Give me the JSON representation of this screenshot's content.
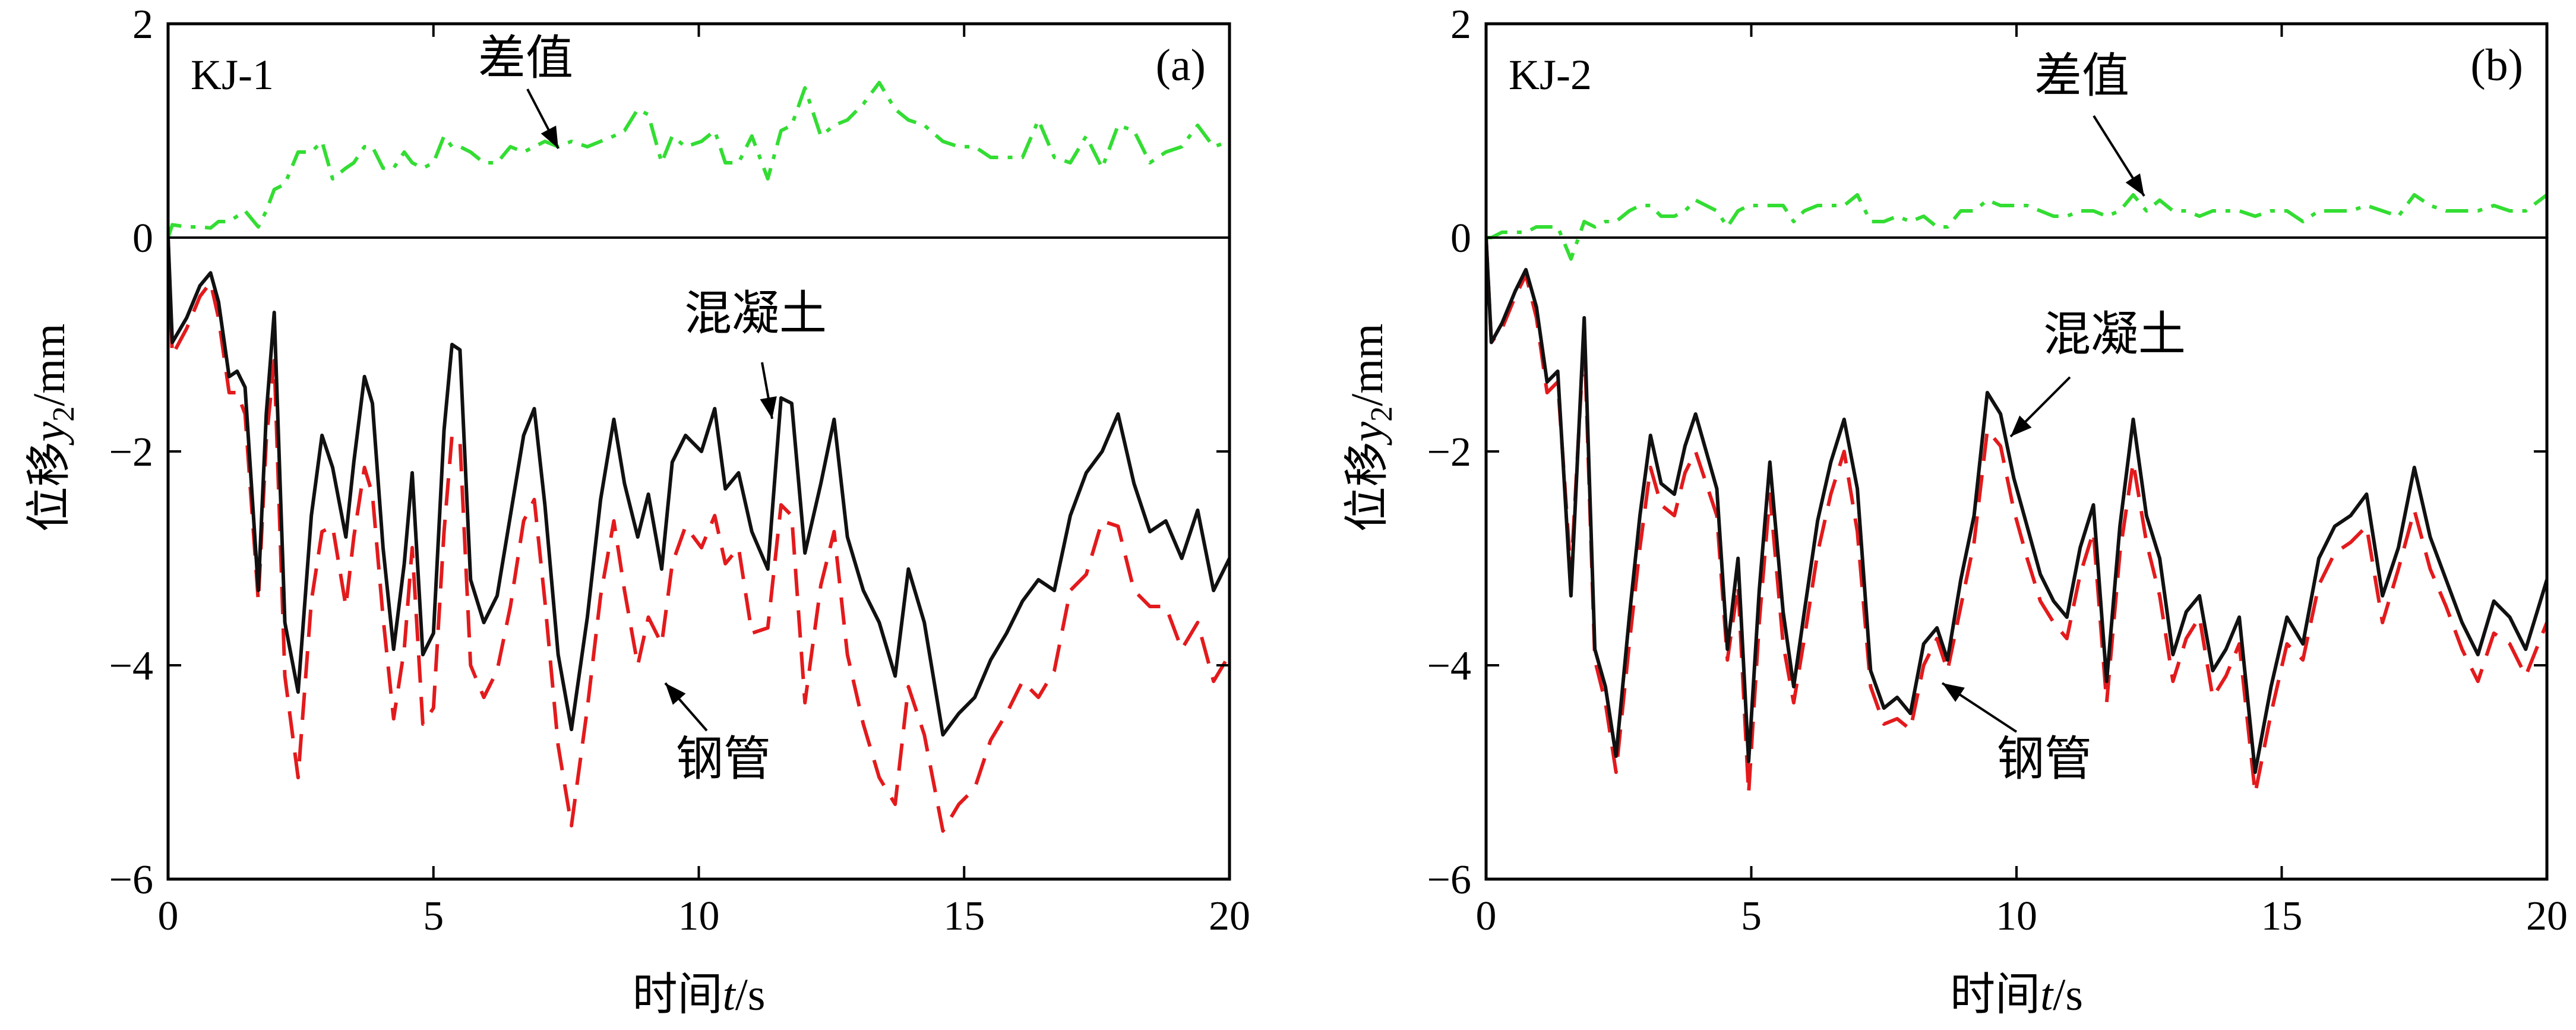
{
  "chart_data": [
    {
      "type": "line",
      "panel_label": "(a)",
      "specimen": "KJ-1",
      "xlabel_prefix": "时间",
      "xlabel_var": "t",
      "xlabel_unit": "/s",
      "ylabel_prefix": "位移",
      "ylabel_var": "y",
      "ylabel_sub": "2",
      "ylabel_unit": "/mm",
      "xlim": [
        0,
        20
      ],
      "ylim": [
        -6,
        2
      ],
      "xticks": [
        "0",
        "5",
        "10",
        "15",
        "20"
      ],
      "yticks": [
        "2",
        "0",
        "−2",
        "−4",
        "−6"
      ],
      "grid": false,
      "annotations": [
        {
          "text": "差值",
          "series": "diff"
        },
        {
          "text": "混凝土",
          "series": "concrete"
        },
        {
          "text": "钢管",
          "series": "steel"
        }
      ],
      "x": [
        0,
        0.08,
        0.35,
        0.6,
        0.8,
        0.95,
        1.15,
        1.3,
        1.45,
        1.7,
        1.85,
        2.0,
        2.2,
        2.45,
        2.7,
        2.9,
        3.1,
        3.35,
        3.5,
        3.7,
        3.85,
        4.05,
        4.25,
        4.45,
        4.6,
        4.8,
        5.0,
        5.2,
        5.35,
        5.5,
        5.7,
        5.95,
        6.2,
        6.45,
        6.7,
        6.9,
        7.1,
        7.35,
        7.6,
        7.9,
        8.15,
        8.4,
        8.6,
        8.85,
        9.05,
        9.3,
        9.5,
        9.75,
        10.05,
        10.3,
        10.5,
        10.75,
        11.0,
        11.3,
        11.55,
        11.75,
        12.0,
        12.3,
        12.55,
        12.8,
        13.1,
        13.4,
        13.7,
        13.95,
        14.25,
        14.6,
        14.9,
        15.2,
        15.5,
        15.8,
        16.1,
        16.4,
        16.7,
        17.0,
        17.3,
        17.6,
        17.9,
        18.2,
        18.5,
        18.8,
        19.1,
        19.4,
        19.7,
        20.0
      ],
      "series": [
        {
          "id": "concrete",
          "color": "#111111",
          "dash": "solid",
          "values": [
            0,
            -0.98,
            -0.75,
            -0.45,
            -0.33,
            -0.6,
            -1.3,
            -1.25,
            -1.4,
            -3.3,
            -1.65,
            -0.7,
            -3.6,
            -4.25,
            -2.6,
            -1.85,
            -2.15,
            -2.8,
            -2.1,
            -1.3,
            -1.55,
            -2.9,
            -3.85,
            -3.05,
            -2.2,
            -3.9,
            -3.7,
            -1.8,
            -1.0,
            -1.05,
            -3.2,
            -3.6,
            -3.35,
            -2.6,
            -1.85,
            -1.6,
            -2.5,
            -3.9,
            -4.6,
            -3.55,
            -2.45,
            -1.7,
            -2.3,
            -2.8,
            -2.4,
            -3.1,
            -2.1,
            -1.85,
            -2.0,
            -1.6,
            -2.35,
            -2.2,
            -2.75,
            -3.1,
            -1.5,
            -1.55,
            -2.95,
            -2.3,
            -1.7,
            -2.8,
            -3.3,
            -3.6,
            -4.1,
            -3.1,
            -3.6,
            -4.65,
            -4.45,
            -4.3,
            -3.95,
            -3.7,
            -3.4,
            -3.2,
            -3.3,
            -2.6,
            -2.2,
            -2.0,
            -1.65,
            -2.3,
            -2.75,
            -2.65,
            -3.0,
            -2.55,
            -3.3,
            -3.0
          ]
        },
        {
          "id": "steel",
          "color": "#e31a1c",
          "dash": "dashed",
          "values": [
            0,
            -1.1,
            -0.85,
            -0.55,
            -0.42,
            -0.75,
            -1.45,
            -1.45,
            -1.65,
            -3.4,
            -1.9,
            -1.15,
            -4.1,
            -5.05,
            -3.4,
            -2.75,
            -2.7,
            -3.45,
            -2.8,
            -2.15,
            -2.4,
            -3.55,
            -4.5,
            -3.85,
            -2.9,
            -4.55,
            -4.4,
            -2.75,
            -1.85,
            -1.9,
            -4.0,
            -4.3,
            -4.05,
            -3.45,
            -2.65,
            -2.45,
            -3.4,
            -4.75,
            -5.5,
            -4.4,
            -3.35,
            -2.65,
            -3.3,
            -4.0,
            -3.55,
            -3.8,
            -3.05,
            -2.7,
            -2.9,
            -2.6,
            -3.05,
            -2.9,
            -3.7,
            -3.65,
            -2.5,
            -2.6,
            -4.35,
            -3.25,
            -2.75,
            -3.9,
            -4.55,
            -5.05,
            -5.3,
            -4.2,
            -4.65,
            -5.55,
            -5.3,
            -5.15,
            -4.7,
            -4.45,
            -4.15,
            -4.3,
            -4.05,
            -3.3,
            -3.15,
            -2.65,
            -2.7,
            -3.3,
            -3.45,
            -3.45,
            -3.85,
            -3.6,
            -4.15,
            -3.9
          ]
        },
        {
          "id": "diff",
          "color": "#33dd33",
          "dash": "dashdot",
          "values": [
            0,
            0.12,
            0.1,
            0.1,
            0.09,
            0.15,
            0.15,
            0.2,
            0.25,
            0.1,
            0.25,
            0.45,
            0.5,
            0.8,
            0.8,
            0.9,
            0.55,
            0.65,
            0.7,
            0.85,
            0.85,
            0.65,
            0.65,
            0.8,
            0.7,
            0.65,
            0.7,
            0.95,
            0.85,
            0.85,
            0.8,
            0.7,
            0.7,
            0.85,
            0.8,
            0.85,
            0.9,
            0.85,
            0.9,
            0.85,
            0.9,
            0.95,
            1.0,
            1.2,
            1.15,
            0.7,
            0.95,
            0.85,
            0.9,
            1.0,
            0.7,
            0.7,
            0.95,
            0.55,
            1.0,
            1.05,
            1.4,
            0.95,
            1.05,
            1.1,
            1.25,
            1.45,
            1.2,
            1.1,
            1.05,
            0.9,
            0.85,
            0.85,
            0.75,
            0.75,
            0.75,
            1.1,
            0.75,
            0.7,
            0.95,
            0.65,
            1.05,
            1.0,
            0.7,
            0.8,
            0.85,
            1.05,
            0.85,
            0.9
          ]
        }
      ]
    },
    {
      "type": "line",
      "panel_label": "(b)",
      "specimen": "KJ-2",
      "xlabel_prefix": "时间",
      "xlabel_var": "t",
      "xlabel_unit": "/s",
      "ylabel_prefix": "位移",
      "ylabel_var": "y",
      "ylabel_sub": "2",
      "ylabel_unit": "/mm",
      "xlim": [
        0,
        20
      ],
      "ylim": [
        -6,
        2
      ],
      "xticks": [
        "0",
        "5",
        "10",
        "15",
        "20"
      ],
      "yticks": [
        "2",
        "0",
        "−2",
        "−4",
        "−6"
      ],
      "grid": false,
      "annotations": [
        {
          "text": "差值",
          "series": "diff"
        },
        {
          "text": "混凝土",
          "series": "concrete"
        },
        {
          "text": "钢管",
          "series": "steel"
        }
      ],
      "x": [
        0,
        0.1,
        0.3,
        0.55,
        0.75,
        0.95,
        1.15,
        1.35,
        1.6,
        1.85,
        2.05,
        2.25,
        2.45,
        2.7,
        2.9,
        3.1,
        3.3,
        3.55,
        3.75,
        3.95,
        4.15,
        4.35,
        4.55,
        4.75,
        4.95,
        5.15,
        5.35,
        5.6,
        5.8,
        6.0,
        6.25,
        6.5,
        6.75,
        7.0,
        7.25,
        7.5,
        7.75,
        8.0,
        8.25,
        8.5,
        8.7,
        8.95,
        9.2,
        9.45,
        9.7,
        9.95,
        10.2,
        10.45,
        10.7,
        10.95,
        11.2,
        11.45,
        11.7,
        11.95,
        12.2,
        12.45,
        12.7,
        12.95,
        13.2,
        13.45,
        13.7,
        13.95,
        14.2,
        14.5,
        14.8,
        15.1,
        15.4,
        15.7,
        16.0,
        16.3,
        16.6,
        16.9,
        17.2,
        17.5,
        17.8,
        18.1,
        18.4,
        18.7,
        19.0,
        19.3,
        19.6,
        20.0
      ],
      "series": [
        {
          "id": "concrete",
          "color": "#111111",
          "dash": "solid",
          "values": [
            0,
            -0.98,
            -0.8,
            -0.5,
            -0.3,
            -0.65,
            -1.35,
            -1.25,
            -3.35,
            -0.75,
            -3.85,
            -4.2,
            -4.85,
            -3.55,
            -2.6,
            -1.85,
            -2.3,
            -2.4,
            -1.95,
            -1.65,
            -2.0,
            -2.35,
            -3.85,
            -3.0,
            -4.9,
            -3.3,
            -2.1,
            -3.5,
            -4.2,
            -3.5,
            -2.65,
            -2.1,
            -1.7,
            -2.35,
            -4.05,
            -4.4,
            -4.3,
            -4.45,
            -3.8,
            -3.65,
            -3.95,
            -3.2,
            -2.6,
            -1.45,
            -1.65,
            -2.25,
            -2.7,
            -3.15,
            -3.4,
            -3.55,
            -2.9,
            -2.5,
            -4.15,
            -2.7,
            -1.7,
            -2.6,
            -3.0,
            -3.9,
            -3.5,
            -3.35,
            -4.05,
            -3.85,
            -3.55,
            -5.0,
            -4.2,
            -3.55,
            -3.8,
            -3.0,
            -2.7,
            -2.6,
            -2.4,
            -3.35,
            -2.9,
            -2.15,
            -2.8,
            -3.2,
            -3.6,
            -3.9,
            -3.4,
            -3.55,
            -3.85,
            -3.2
          ]
        },
        {
          "id": "steel",
          "color": "#e31a1c",
          "dash": "dashed",
          "values": [
            0,
            -0.98,
            -0.85,
            -0.55,
            -0.35,
            -0.75,
            -1.45,
            -1.35,
            -3.15,
            -0.9,
            -3.95,
            -4.35,
            -5.0,
            -3.8,
            -2.9,
            -2.15,
            -2.5,
            -2.6,
            -2.2,
            -2.0,
            -2.3,
            -2.6,
            -3.95,
            -3.25,
            -5.2,
            -3.6,
            -2.4,
            -3.8,
            -4.35,
            -3.75,
            -2.95,
            -2.4,
            -2.0,
            -2.75,
            -4.2,
            -4.55,
            -4.5,
            -4.6,
            -4.0,
            -3.75,
            -4.05,
            -3.45,
            -2.85,
            -1.8,
            -1.95,
            -2.55,
            -3.0,
            -3.4,
            -3.6,
            -3.75,
            -3.15,
            -2.75,
            -4.35,
            -2.95,
            -2.1,
            -2.85,
            -3.35,
            -4.15,
            -3.75,
            -3.55,
            -4.3,
            -4.1,
            -3.8,
            -5.2,
            -4.45,
            -3.8,
            -3.95,
            -3.25,
            -2.95,
            -2.85,
            -2.7,
            -3.6,
            -3.1,
            -2.55,
            -3.1,
            -3.45,
            -3.85,
            -4.15,
            -3.7,
            -3.8,
            -4.1,
            -3.6
          ]
        },
        {
          "id": "diff",
          "color": "#33dd33",
          "dash": "dashdot",
          "values": [
            0,
            0,
            0.05,
            0.05,
            0.05,
            0.1,
            0.1,
            0.1,
            -0.2,
            0.15,
            0.1,
            0.15,
            0.15,
            0.25,
            0.3,
            0.3,
            0.2,
            0.2,
            0.25,
            0.35,
            0.3,
            0.25,
            0.1,
            0.25,
            0.3,
            0.3,
            0.3,
            0.3,
            0.15,
            0.25,
            0.3,
            0.3,
            0.3,
            0.4,
            0.15,
            0.15,
            0.2,
            0.15,
            0.2,
            0.1,
            0.1,
            0.25,
            0.25,
            0.35,
            0.3,
            0.3,
            0.3,
            0.25,
            0.2,
            0.2,
            0.25,
            0.25,
            0.2,
            0.25,
            0.4,
            0.25,
            0.35,
            0.25,
            0.25,
            0.2,
            0.25,
            0.25,
            0.25,
            0.2,
            0.25,
            0.25,
            0.15,
            0.25,
            0.25,
            0.25,
            0.3,
            0.25,
            0.2,
            0.4,
            0.3,
            0.25,
            0.25,
            0.25,
            0.3,
            0.25,
            0.25,
            0.4
          ]
        }
      ]
    }
  ]
}
